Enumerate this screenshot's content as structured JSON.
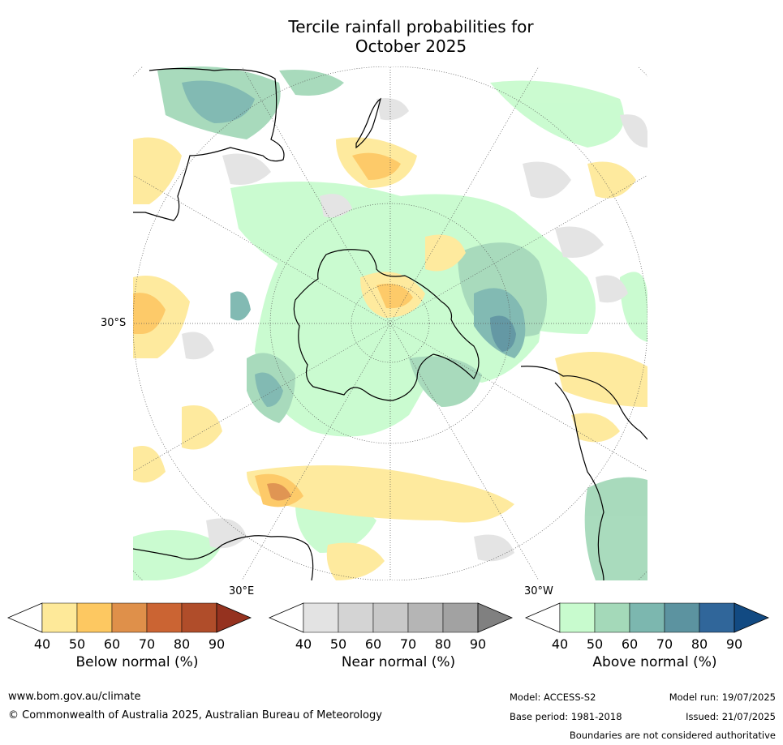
{
  "title": {
    "line1": "Tercile rainfall probabilities for",
    "line2": "October 2025"
  },
  "map": {
    "projection": "south-polar-stereographic",
    "labels": {
      "lat_30s": "30°S",
      "lon_30e": "30°E",
      "lon_30w": "30°W"
    }
  },
  "colorbars": [
    {
      "name": "below",
      "label": "Below normal (%)",
      "ticks": [
        "40",
        "50",
        "60",
        "70",
        "80",
        "90"
      ],
      "colors": [
        "#fee999",
        "#fdc861",
        "#df904a",
        "#cb6433",
        "#b04d2a",
        "#95321f"
      ]
    },
    {
      "name": "near",
      "label": "Near normal (%)",
      "ticks": [
        "40",
        "50",
        "60",
        "70",
        "80",
        "90"
      ],
      "colors": [
        "#e3e3e3",
        "#d4d4d4",
        "#c8c8c8",
        "#b5b5b5",
        "#a2a2a2",
        "#808080"
      ]
    },
    {
      "name": "above",
      "label": "Above normal (%)",
      "ticks": [
        "40",
        "50",
        "60",
        "70",
        "80",
        "90"
      ],
      "colors": [
        "#c8fbce",
        "#a4d9b9",
        "#7cb7af",
        "#5c93a0",
        "#30669a",
        "#124a82"
      ]
    }
  ],
  "footer": {
    "website": "www.bom.gov.au/climate",
    "copyright": "© Commonwealth of Australia 2025, Australian Bureau of Meteorology",
    "model": "Model: ACCESS-S2",
    "model_run": "Model run: 19/07/2025",
    "base_period": "Base period: 1981-2018",
    "issued": "Issued: 21/07/2025",
    "disclaimer": "Boundaries are not considered authoritative"
  }
}
